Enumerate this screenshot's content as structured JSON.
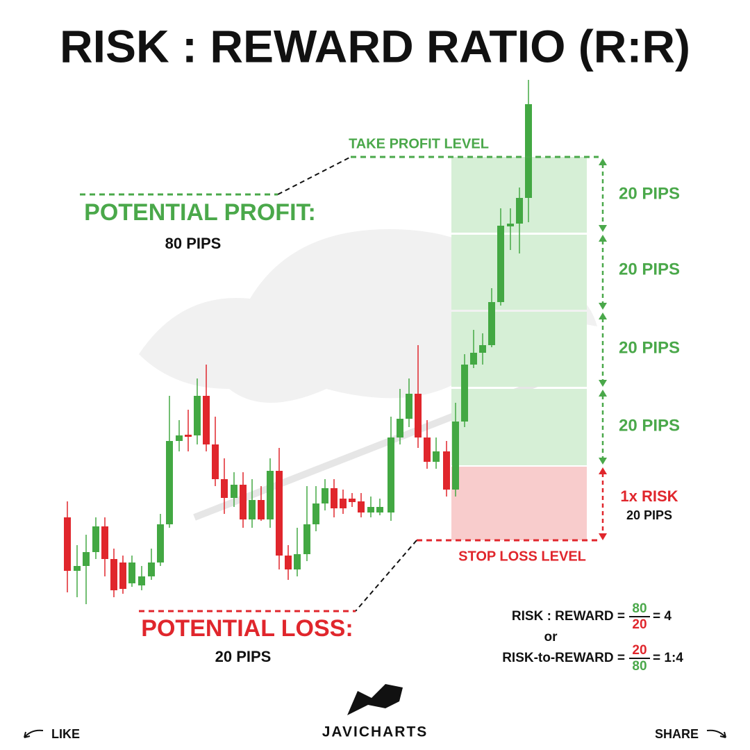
{
  "header": {
    "title": "RISK : REWARD RATIO (R:R)"
  },
  "levels": {
    "take_profit": "TAKE PROFIT LEVEL",
    "stop_loss": "STOP LOSS LEVEL"
  },
  "profit": {
    "label": "POTENTIAL PROFIT:",
    "amount": "80 PIPS"
  },
  "loss": {
    "label": "POTENTIAL LOSS:",
    "amount": "20 PIPS"
  },
  "reward_steps": [
    "20 PIPS",
    "20 PIPS",
    "20 PIPS",
    "20 PIPS"
  ],
  "risk": {
    "label": "1x RISK",
    "amount": "20 PIPS"
  },
  "formula": {
    "line1": {
      "label": "RISK : REWARD =",
      "numerator": "80",
      "denominator": "20",
      "result": "= 4"
    },
    "or": "or",
    "line2": {
      "label": "RISK-to-REWARD =",
      "numerator": "20",
      "denominator": "80",
      "result": "= 1:4"
    }
  },
  "footer": {
    "brand": "JAVICHARTS",
    "like": "LIKE",
    "share": "SHARE"
  }
}
